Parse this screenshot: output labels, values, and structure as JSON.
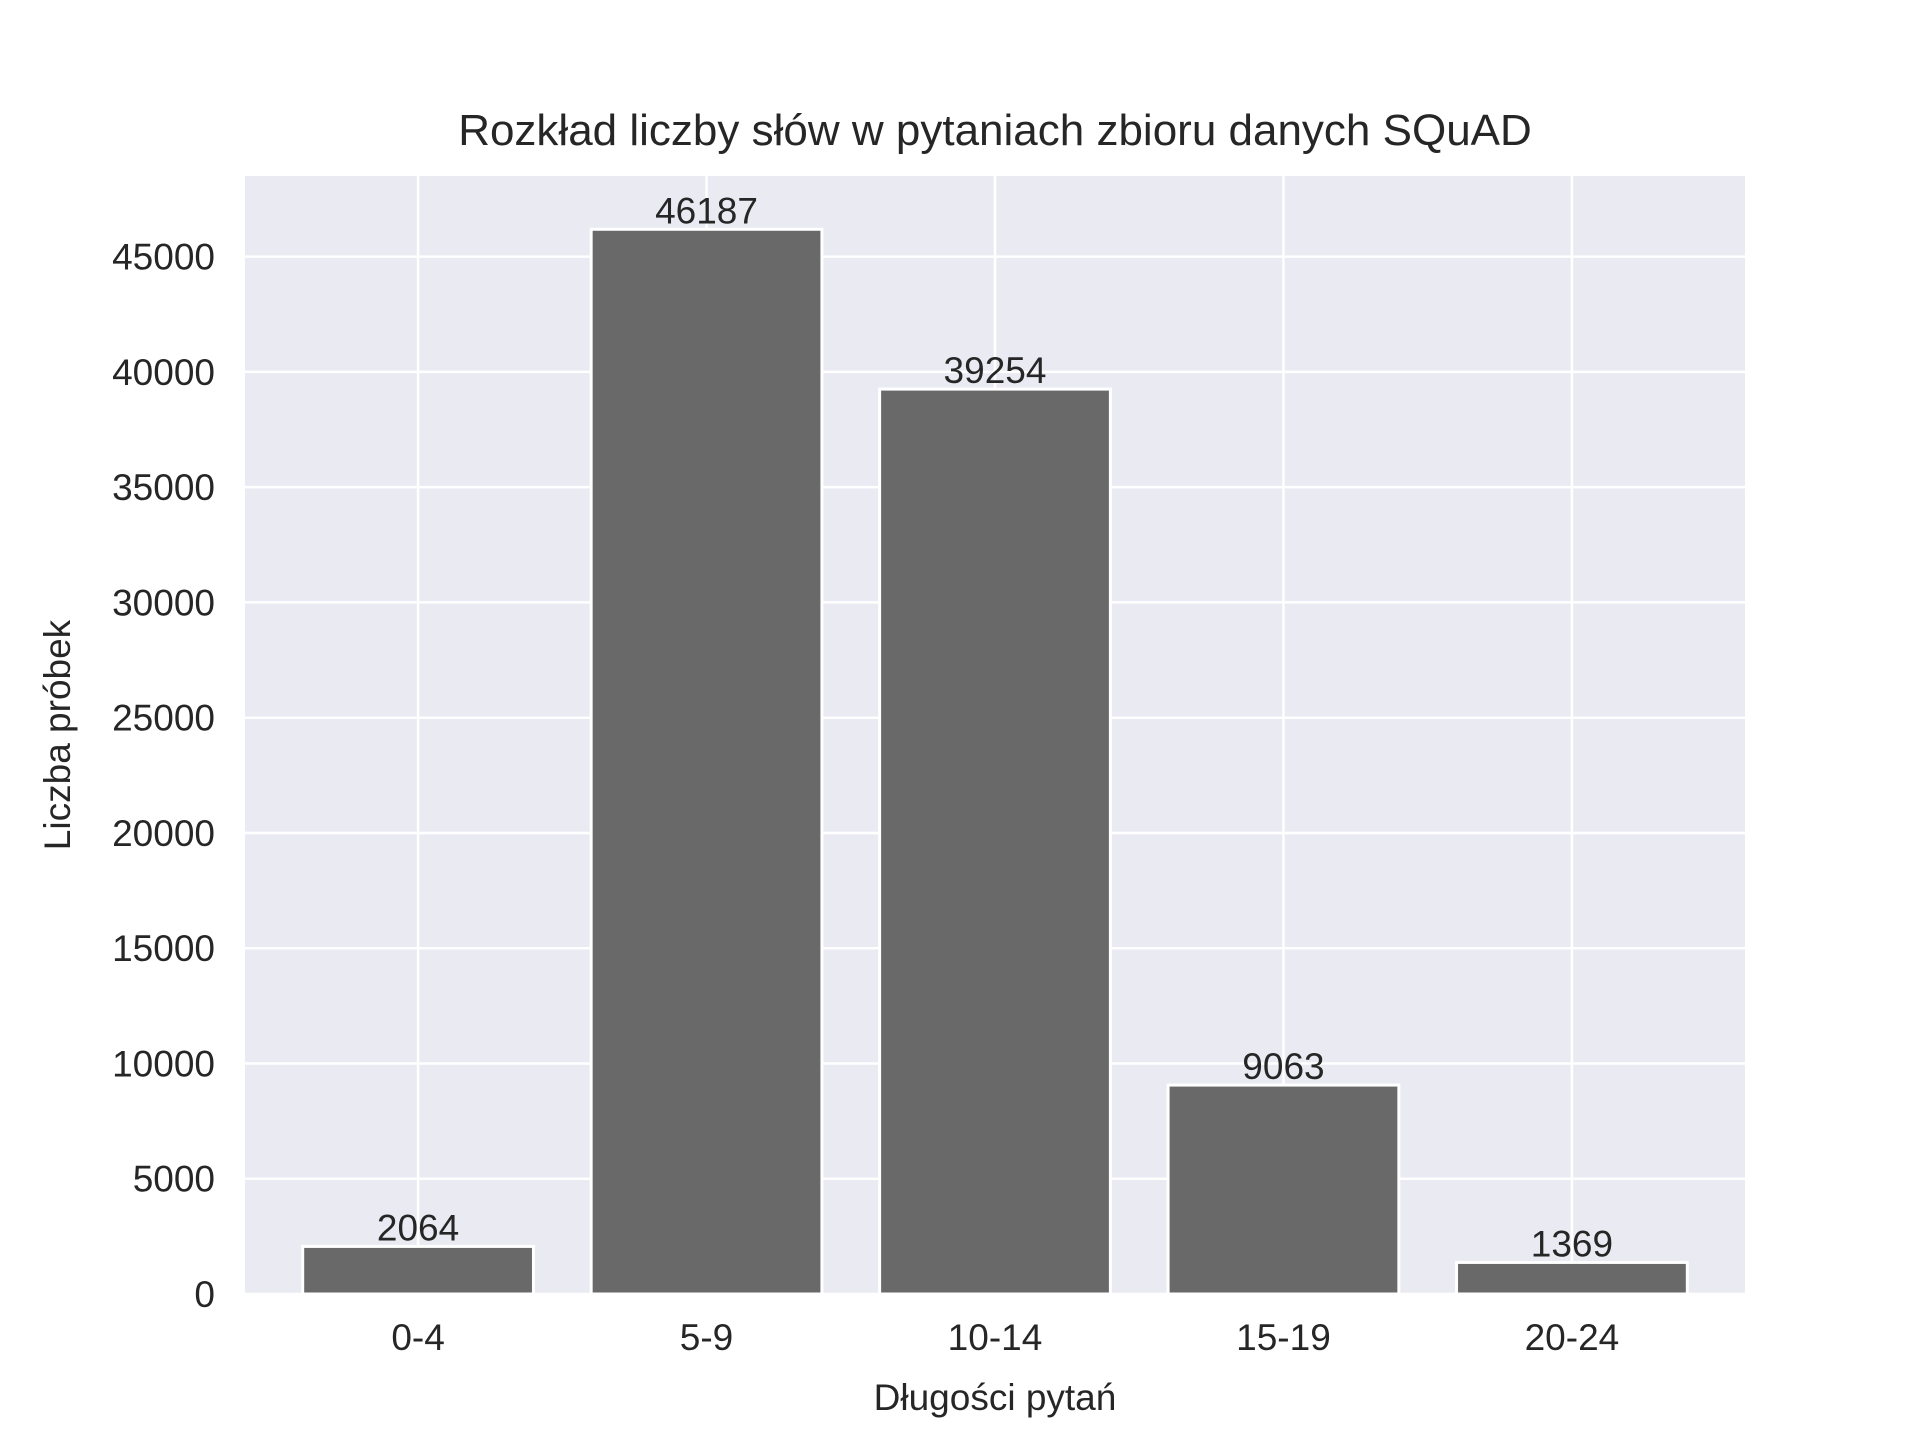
{
  "chart_data": {
    "type": "bar",
    "title": "Rozkład liczby słów w pytaniach zbioru danych SQuAD",
    "xlabel": "Długości pytań",
    "ylabel": "Liczba próbek",
    "categories": [
      "0-4",
      "5-9",
      "10-14",
      "15-19",
      "20-24"
    ],
    "values": [
      2064,
      46187,
      39254,
      9063,
      1369
    ],
    "data_labels": [
      "2064",
      "46187",
      "39254",
      "9063",
      "1369"
    ],
    "ylim": [
      0,
      48498
    ],
    "yticks": [
      0,
      5000,
      10000,
      15000,
      20000,
      25000,
      30000,
      35000,
      40000,
      45000
    ],
    "ytick_labels": [
      "0",
      "5000",
      "10000",
      "15000",
      "20000",
      "25000",
      "30000",
      "35000",
      "40000",
      "45000"
    ],
    "grid": true,
    "legend": "none",
    "colors": {
      "bar": "#696969",
      "plot_background": "#eaeaf2",
      "grid": "#ffffff",
      "text": "#262626"
    }
  }
}
